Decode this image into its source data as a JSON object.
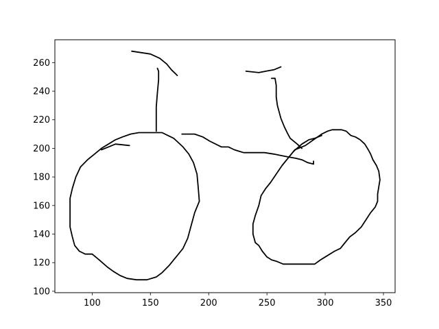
{
  "chart_data": {
    "type": "line",
    "title": "",
    "xlabel": "",
    "ylabel": "",
    "xlim": [
      68,
      360
    ],
    "ylim": [
      99,
      276
    ],
    "grid": false,
    "x_ticks": [
      100,
      150,
      200,
      250,
      300,
      350
    ],
    "y_ticks": [
      100,
      120,
      140,
      160,
      180,
      200,
      220,
      240,
      260
    ],
    "line_color": "#000000",
    "series": [
      {
        "points": [
          [
            134,
            268
          ],
          [
            150,
            266
          ],
          [
            158,
            263
          ],
          [
            164,
            259
          ],
          [
            168,
            255
          ],
          [
            173,
            251
          ]
        ]
      },
      {
        "points": [
          [
            156,
            256
          ],
          [
            157,
            254
          ],
          [
            157,
            248
          ],
          [
            156,
            239
          ],
          [
            155,
            229
          ],
          [
            155,
            212
          ]
        ]
      },
      {
        "points": [
          [
            155,
            211
          ],
          [
            160,
            211
          ],
          [
            165,
            209
          ],
          [
            170,
            207
          ],
          [
            178,
            201
          ],
          [
            183,
            196
          ],
          [
            187,
            190
          ],
          [
            190,
            182
          ],
          [
            191,
            173
          ],
          [
            192,
            163
          ],
          [
            188,
            155
          ],
          [
            185,
            146
          ],
          [
            182,
            137
          ],
          [
            178,
            130
          ],
          [
            172,
            124
          ],
          [
            166,
            118
          ],
          [
            160,
            113
          ],
          [
            155,
            110
          ],
          [
            147,
            108
          ],
          [
            138,
            108
          ],
          [
            130,
            109
          ],
          [
            124,
            111
          ],
          [
            118,
            114
          ],
          [
            113,
            117
          ],
          [
            106,
            122
          ],
          [
            100,
            126
          ],
          [
            94,
            126
          ],
          [
            89,
            128
          ],
          [
            85,
            132
          ],
          [
            83,
            138
          ],
          [
            81,
            145
          ],
          [
            81,
            153
          ],
          [
            81,
            165
          ],
          [
            83,
            172
          ],
          [
            86,
            180
          ],
          [
            90,
            187
          ],
          [
            96,
            192
          ],
          [
            102,
            196
          ],
          [
            108,
            200
          ],
          [
            114,
            203
          ],
          [
            120,
            206
          ],
          [
            126,
            208
          ],
          [
            133,
            210
          ],
          [
            140,
            211
          ],
          [
            155,
            211
          ]
        ]
      },
      {
        "points": [
          [
            108,
            199
          ],
          [
            114,
            201
          ],
          [
            120,
            203
          ],
          [
            132,
            202
          ]
        ]
      },
      {
        "points": [
          [
            177,
            210
          ],
          [
            188,
            210
          ],
          [
            195,
            208
          ],
          [
            201,
            205
          ],
          [
            206,
            203
          ],
          [
            211,
            201
          ],
          [
            217,
            201
          ],
          [
            222,
            199
          ],
          [
            226,
            198
          ],
          [
            230,
            197
          ],
          [
            248,
            197
          ],
          [
            256,
            196
          ],
          [
            262,
            195
          ],
          [
            268,
            194
          ],
          [
            275,
            193
          ],
          [
            280,
            192
          ],
          [
            285,
            190
          ],
          [
            290,
            189
          ],
          [
            290,
            191
          ]
        ]
      },
      {
        "points": [
          [
            232,
            254
          ],
          [
            243,
            253
          ],
          [
            249,
            254
          ],
          [
            256,
            255
          ],
          [
            262,
            257
          ]
        ]
      },
      {
        "points": [
          [
            254,
            249
          ],
          [
            257,
            249
          ],
          [
            258,
            244
          ],
          [
            258,
            236
          ],
          [
            259,
            230
          ],
          [
            262,
            221
          ],
          [
            265,
            215
          ],
          [
            268,
            210
          ],
          [
            270,
            207
          ],
          [
            276,
            203
          ],
          [
            280,
            200
          ]
        ]
      },
      {
        "points": [
          [
            273,
            198
          ],
          [
            280,
            203
          ],
          [
            286,
            206
          ],
          [
            291,
            207
          ],
          [
            297,
            209
          ]
        ]
      },
      {
        "points": [
          [
            274,
            199
          ],
          [
            268,
            193
          ],
          [
            263,
            188
          ],
          [
            258,
            182
          ],
          [
            253,
            176
          ],
          [
            249,
            172
          ],
          [
            245,
            167
          ],
          [
            243,
            160
          ],
          [
            240,
            153
          ],
          [
            238,
            147
          ],
          [
            238,
            140
          ],
          [
            240,
            134
          ],
          [
            243,
            132
          ],
          [
            246,
            128
          ],
          [
            250,
            124
          ],
          [
            254,
            122
          ],
          [
            258,
            121
          ],
          [
            264,
            119
          ],
          [
            272,
            119
          ],
          [
            291,
            119
          ],
          [
            296,
            122
          ],
          [
            302,
            125
          ],
          [
            308,
            128
          ],
          [
            313,
            130
          ],
          [
            317,
            134
          ],
          [
            321,
            138
          ],
          [
            326,
            141
          ],
          [
            331,
            145
          ],
          [
            335,
            150
          ],
          [
            339,
            155
          ],
          [
            343,
            159
          ],
          [
            345,
            163
          ],
          [
            345,
            168
          ],
          [
            346,
            173
          ],
          [
            347,
            178
          ],
          [
            346,
            184
          ],
          [
            344,
            188
          ],
          [
            341,
            192
          ],
          [
            339,
            196
          ],
          [
            337,
            199
          ],
          [
            334,
            203
          ],
          [
            330,
            206
          ],
          [
            326,
            208
          ],
          [
            322,
            209
          ],
          [
            318,
            212
          ],
          [
            314,
            213
          ],
          [
            306,
            213
          ],
          [
            302,
            212
          ],
          [
            297,
            210
          ],
          [
            290,
            206
          ],
          [
            283,
            202
          ],
          [
            274,
            199
          ]
        ]
      }
    ]
  }
}
